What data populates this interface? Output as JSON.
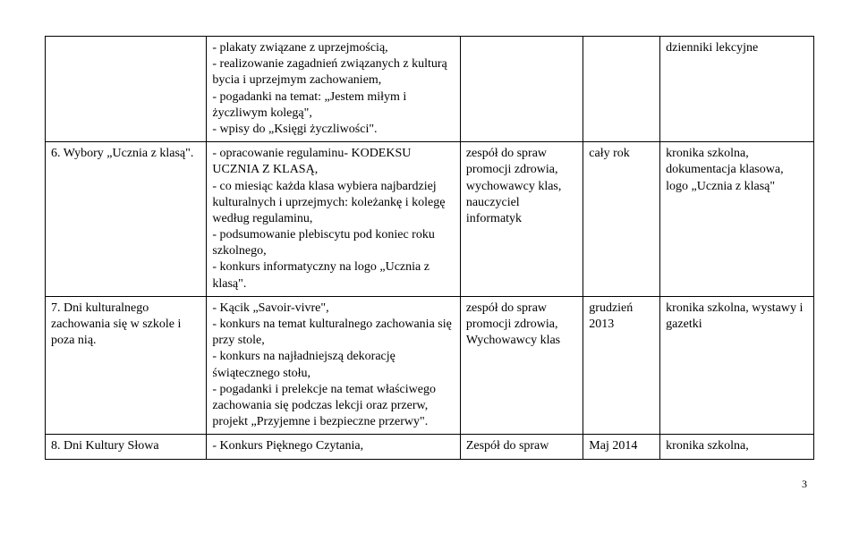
{
  "rows": [
    {
      "c1": "",
      "c2": "- plakaty związane z uprzejmością,\n- realizowanie zagadnień związanych z kulturą bycia i uprzejmym zachowaniem,\n- pogadanki na temat: „Jestem miłym i życzliwym kolegą\",\n- wpisy do „Księgi życzliwości\".",
      "c3": "",
      "c4": "",
      "c5": "dzienniki lekcyjne"
    },
    {
      "c1": "6. Wybory „Ucznia z klasą\".",
      "c2": "- opracowanie regulaminu- KODEKSU UCZNIA Z KLASĄ,\n- co miesiąc każda klasa wybiera najbardziej kulturalnych i uprzejmych: koleżankę i kolegę według regulaminu,\n- podsumowanie plebiscytu pod koniec roku szkolnego,\n- konkurs informatyczny na logo „Ucznia z klasą\".",
      "c3": "zespół do spraw promocji zdrowia, wychowawcy klas, nauczyciel informatyk",
      "c4": "cały rok",
      "c5": "kronika szkolna, dokumentacja klasowa,\nlogo „Ucznia z klasą\""
    },
    {
      "c1": "7. Dni kulturalnego zachowania się w szkole i poza nią.",
      "c2": "- Kącik „Savoir-vivre\",\n- konkurs na temat kulturalnego zachowania się przy stole,\n- konkurs na najładniejszą dekorację świątecznego stołu,\n- pogadanki i prelekcje na temat właściwego zachowania się podczas lekcji oraz przerw, projekt „Przyjemne i bezpieczne przerwy\".",
      "c3": "zespół do spraw promocji zdrowia, Wychowawcy klas",
      "c4": "grudzień 2013",
      "c5": "kronika szkolna, wystawy i gazetki"
    },
    {
      "c1": "8. Dni Kultury Słowa",
      "c2": "- Konkurs Pięknego Czytania,",
      "c3": "Zespół do spraw",
      "c4": "Maj 2014",
      "c5": "kronika szkolna,"
    }
  ],
  "page_number": "3"
}
